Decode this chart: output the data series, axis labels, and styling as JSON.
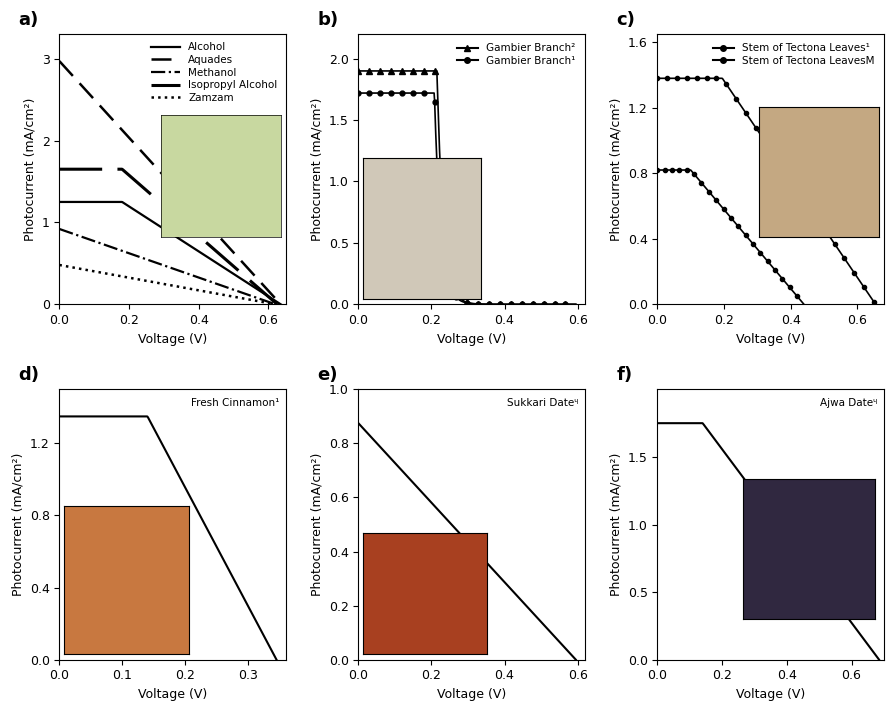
{
  "a": {
    "xlabel": "Voltage (V)",
    "ylabel": "Photocurrent (mA/cm²)",
    "xlim": [
      0,
      0.65
    ],
    "ylim": [
      0,
      3.3
    ],
    "xticks": [
      0.0,
      0.2,
      0.4,
      0.6
    ],
    "yticks": [
      0,
      1,
      2,
      3
    ],
    "series": [
      {
        "name": "Alcohol",
        "style": "-",
        "lw": 1.6,
        "isc": 1.25,
        "voc": 0.635,
        "knee": 0.18,
        "linear": true
      },
      {
        "name": "Aquades",
        "style": "--",
        "lw": 1.8,
        "isc": 2.97,
        "voc": 0.635,
        "knee": 0.0,
        "linear": true
      },
      {
        "name": "Methanol",
        "style": "-.",
        "lw": 1.6,
        "isc": 0.92,
        "voc": 0.62,
        "knee": 0.0,
        "linear": true
      },
      {
        "name": "Isopropyl Alcohol",
        "style": "--",
        "lw": 2.2,
        "isc": 1.65,
        "voc": 0.625,
        "knee": 0.18,
        "linear": false
      },
      {
        "name": "Zamzam",
        "style": ":",
        "lw": 1.8,
        "isc": 0.48,
        "voc": 0.62,
        "knee": 0.0,
        "linear": true
      }
    ]
  },
  "b": {
    "xlabel": "Voltage (V)",
    "ylabel": "Photocurrent (mA/cm²)",
    "xlim": [
      0,
      0.62
    ],
    "ylim": [
      0,
      2.2
    ],
    "xticks": [
      0.0,
      0.2,
      0.4,
      0.6
    ],
    "yticks": [
      0.0,
      0.5,
      1.0,
      1.5,
      2.0
    ],
    "series": [
      {
        "name": "Gambier Branch²",
        "marker": "^",
        "isc": 1.9,
        "voc": 0.595,
        "vknee": 0.22,
        "ms": 5
      },
      {
        "name": "Gambier Branch¹",
        "marker": "o",
        "isc": 1.72,
        "voc": 0.595,
        "vknee": 0.215,
        "ms": 4
      }
    ]
  },
  "c": {
    "xlabel": "Voltage (V)",
    "ylabel": "Photocurrent (mA/cm²)",
    "xlim": [
      0,
      0.68
    ],
    "ylim": [
      0,
      1.65
    ],
    "xticks": [
      0.0,
      0.2,
      0.4,
      0.6
    ],
    "yticks": [
      0.0,
      0.4,
      0.8,
      1.2,
      1.6
    ],
    "series": [
      {
        "name": "Stem of Tectona Leaves¹",
        "marker": "o",
        "isc": 1.38,
        "voc": 0.655,
        "vknee": 0.2,
        "ms": 3.5
      },
      {
        "name": "Stem of Tectona Leavesᴹ",
        "marker": "o",
        "isc": 0.82,
        "voc": 0.44,
        "vknee": 0.1,
        "ms": 3.5
      }
    ]
  },
  "d": {
    "title": "Fresh Cinnamon¹",
    "xlabel": "Voltage (V)",
    "ylabel": "Photocurrent (mA/cm²)",
    "xlim": [
      0,
      0.36
    ],
    "ylim": [
      0,
      1.5
    ],
    "xticks": [
      0.0,
      0.1,
      0.2,
      0.3
    ],
    "yticks": [
      0.0,
      0.4,
      0.8,
      1.2
    ],
    "isc": 1.35,
    "voc": 0.345,
    "vknee": 0.14
  },
  "e": {
    "title": "Sukkari Dateᶣ",
    "xlabel": "Voltage (V)",
    "ylabel": "Photocurrent (mA/cm²)",
    "xlim": [
      0,
      0.62
    ],
    "ylim": [
      0,
      1.0
    ],
    "xticks": [
      0.0,
      0.2,
      0.4,
      0.6
    ],
    "yticks": [
      0.0,
      0.2,
      0.4,
      0.6,
      0.8,
      1.0
    ],
    "isc": 0.875,
    "voc": 0.595,
    "vknee": 0.0
  },
  "f": {
    "title": "Ajwa Dateᶣ",
    "xlabel": "Voltage (V)",
    "ylabel": "Photocurrent (mA/cm²)",
    "xlim": [
      0,
      0.7
    ],
    "ylim": [
      0,
      2.0
    ],
    "xticks": [
      0.0,
      0.2,
      0.4,
      0.6
    ],
    "yticks": [
      0.0,
      0.5,
      1.0,
      1.5
    ],
    "isc": 1.75,
    "voc": 0.685,
    "vknee": 0.14
  }
}
